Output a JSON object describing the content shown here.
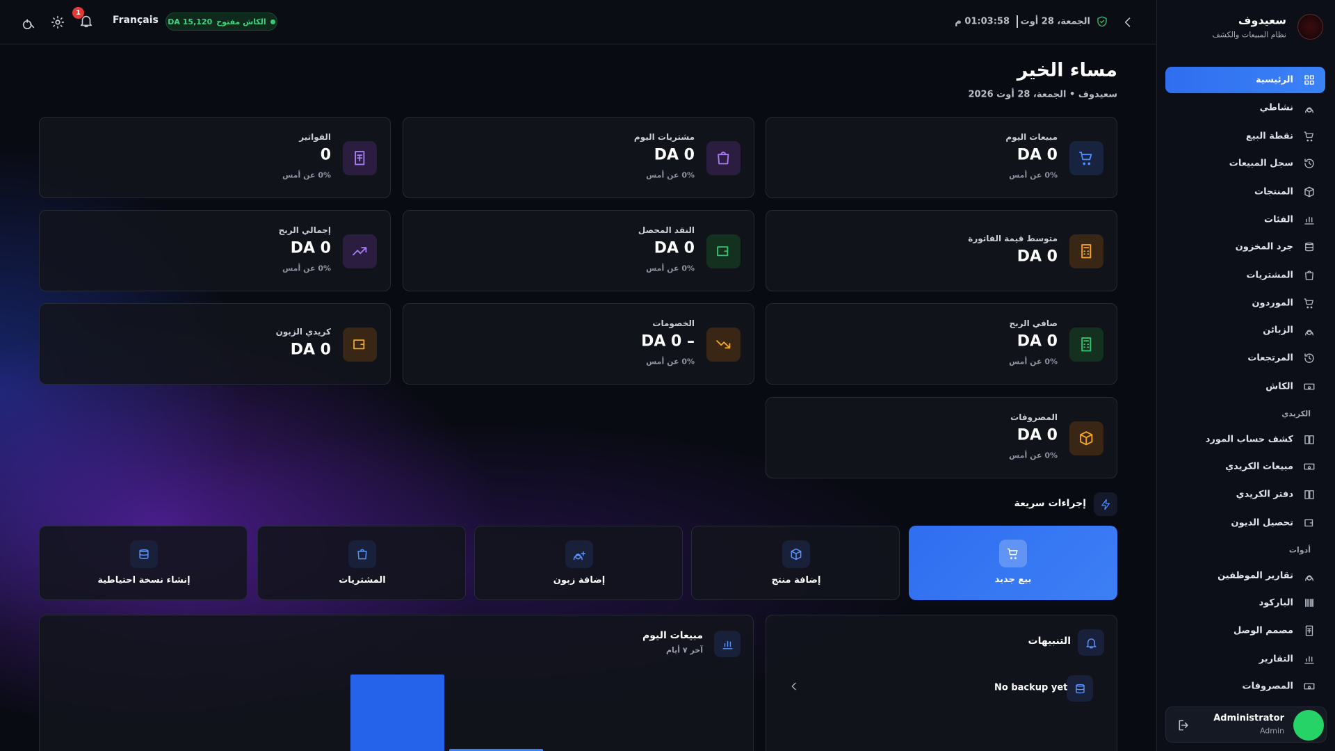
{
  "sidebar": {
    "brand": "سعيدوف",
    "tagline": "نظام المبيعات والكشف",
    "nav": [
      "الرئيسية",
      "نشاطي",
      "نقطة البيع",
      "سجل المبيعات",
      "المنتجات",
      "الفئات",
      "جرد المخزون",
      "المشتريات",
      "الموردون",
      "الزبائن",
      "المرتجعات",
      "الكاش"
    ],
    "sections": [
      {
        "title": "الكريدي",
        "items": [
          "كشف حساب المورد",
          "مبيعات الكريدي",
          "دفتر الكريدي",
          "تحصيل الديون"
        ]
      },
      {
        "title": "أدوات",
        "items": [
          "تقارير الموظفين",
          "الباركود",
          "مصمم الوصل",
          "التقارير",
          "المصروفات"
        ]
      }
    ],
    "user": {
      "name": "Administrator",
      "role": "Admin"
    }
  },
  "topbar": {
    "date": "الجمعة، 28 أوت",
    "time": "01:03:58 م",
    "language": "Français",
    "cash_status": "الكاش مفتوح",
    "cash_amount": "DA 15,120",
    "notifications": "1"
  },
  "greeting": {
    "title": "مساء الخير",
    "subtitle": "سعيدوف • الجمعة، 28 أوت 2026"
  },
  "stats": [
    {
      "label": "مبيعات اليوم",
      "value": "DA 0",
      "change": "0% عن أمس"
    },
    {
      "label": "مشتريات اليوم",
      "value": "DA 0",
      "change": "0% عن أمس"
    },
    {
      "label": "الفواتير",
      "value": "0",
      "change": "0% عن أمس"
    },
    {
      "label": "متوسط قيمة الفاتورة",
      "value": "DA 0"
    },
    {
      "label": "النقد المحصل",
      "value": "DA 0",
      "change": "0% عن أمس"
    },
    {
      "label": "إجمالي الربح",
      "value": "DA 0",
      "change": "0% عن أمس"
    },
    {
      "label": "صافي الربح",
      "value": "DA 0",
      "change": "0% عن أمس"
    },
    {
      "label": "الخصومات",
      "value": "– DA 0",
      "change": "0% عن أمس"
    },
    {
      "label": "كريدي الزبون",
      "value": "DA 0"
    },
    {
      "label": "المصروفات",
      "value": "DA 0",
      "change": "0% عن أمس"
    }
  ],
  "quick_actions": {
    "title": "إجراءات سريعة",
    "items": [
      "بيع جديد",
      "إضافة منتج",
      "إضافة زبون",
      "المشتريات",
      "إنشاء نسخة احتياطية"
    ]
  },
  "alerts": {
    "title": "التنبيهات",
    "items": [
      "No backup yet"
    ]
  },
  "sales_chart": {
    "title": "مبيعات اليوم",
    "subtitle": "آخر ٧ أيام"
  }
}
